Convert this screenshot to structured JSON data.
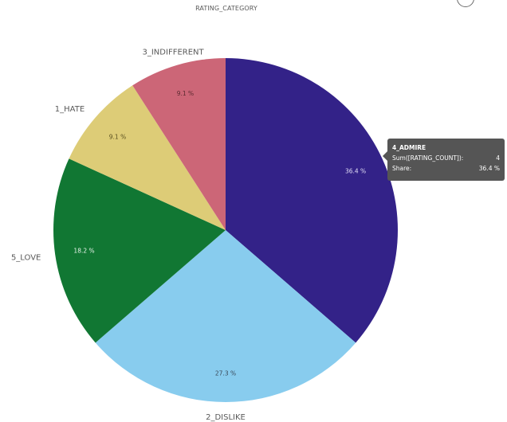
{
  "chart_data": {
    "type": "pie",
    "title": "RATING_CATEGORY",
    "categories": [
      "4_ADMIRE",
      "2_DISLIKE",
      "5_LOVE",
      "1_HATE",
      "3_INDIFFERENT"
    ],
    "values": [
      4,
      3,
      2,
      1,
      1
    ],
    "shares": [
      "36.4 %",
      "27.3 %",
      "18.2 %",
      "9.1 %",
      "9.1 %"
    ],
    "colors": [
      "#332288",
      "#88ccee",
      "#117733",
      "#ddcc77",
      "#cc6677"
    ],
    "legend": "none (labels on slices)",
    "measure": "Sum([RATING_COUNT])"
  },
  "title": "RATING_CATEGORY",
  "slices": [
    {
      "label": "4_ADMIRE",
      "share": "36.4 %"
    },
    {
      "label": "2_DISLIKE",
      "share": "27.3 %"
    },
    {
      "label": "5_LOVE",
      "share": "18.2 %"
    },
    {
      "label": "1_HATE",
      "share": "9.1 %"
    },
    {
      "label": "3_INDIFFERENT",
      "share": "9.1 %"
    }
  ],
  "tooltip": {
    "title": "4_ADMIRE",
    "rows": [
      {
        "label": "Sum([RATING_COUNT]):",
        "value": "4"
      },
      {
        "label": "Share:",
        "value": "36.4 %"
      }
    ]
  }
}
